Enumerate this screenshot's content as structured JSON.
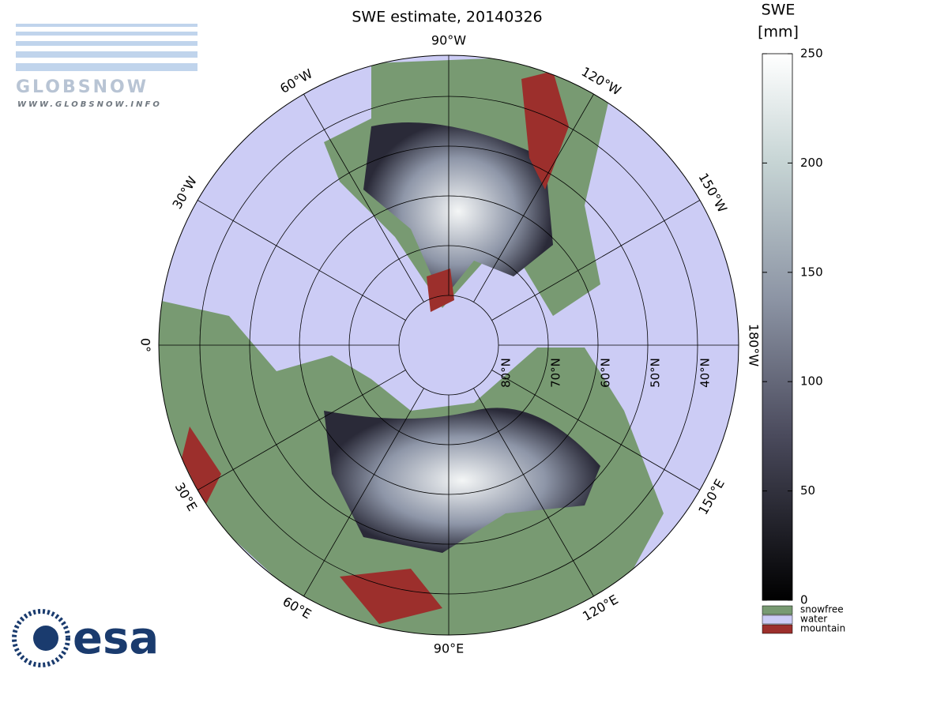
{
  "header": {
    "title": "SWE estimate, 20140326"
  },
  "logos": {
    "top": "GLOBSNOW",
    "url": "WWW.GLOBSNOW.INFO",
    "bottom": "esa"
  },
  "map": {
    "meridians": [
      {
        "value": -90,
        "label": "90°W"
      },
      {
        "value": -60,
        "label": "60°W"
      },
      {
        "value": -30,
        "label": "30°W"
      },
      {
        "value": 0,
        "label": "0°"
      },
      {
        "value": 30,
        "label": "30°E"
      },
      {
        "value": 60,
        "label": "60°E"
      },
      {
        "value": 90,
        "label": "90°E"
      },
      {
        "value": 120,
        "label": "120°E"
      },
      {
        "value": 150,
        "label": "150°E"
      },
      {
        "value": 180,
        "label": "180°W"
      },
      {
        "value": -150,
        "label": "150°W"
      },
      {
        "value": -120,
        "label": "120°W"
      }
    ],
    "parallels": [
      {
        "value": 80,
        "label": "80°N"
      },
      {
        "value": 70,
        "label": "70°N"
      },
      {
        "value": 60,
        "label": "60°N"
      },
      {
        "value": 50,
        "label": "50°N"
      },
      {
        "value": 40,
        "label": "40°N"
      }
    ]
  },
  "colorbar": {
    "title_lines": [
      "SWE",
      "[mm]"
    ],
    "lim": [
      0,
      250
    ],
    "ticks": [
      0,
      50,
      100,
      150,
      200,
      250
    ],
    "legend": [
      {
        "label": "snowfree",
        "color": "#789a72"
      },
      {
        "label": "water",
        "color": "#ccccf5"
      },
      {
        "label": "mountain",
        "color": "#9c2f2c"
      }
    ]
  }
}
